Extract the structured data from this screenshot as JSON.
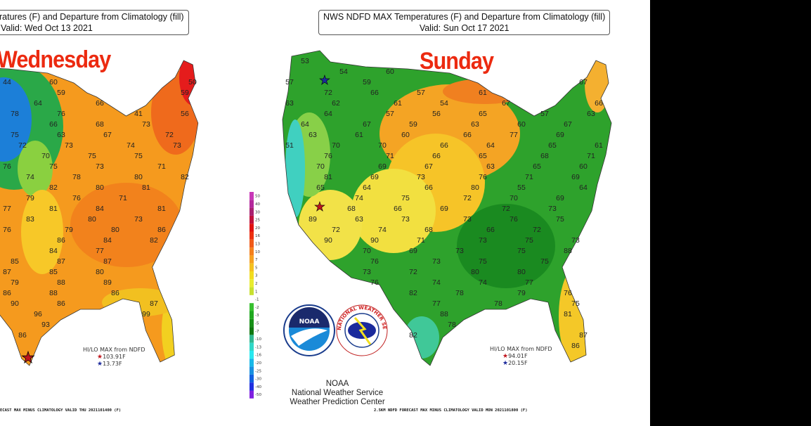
{
  "left_map": {
    "title_line1": "ratures (F) and Departure from Climatology (fill)",
    "title_line2": "Valid: Wed Oct 13 2021",
    "day": "Wednesday",
    "hilo_title": "HI/LO MAX from NDFD",
    "hi": "103.91F",
    "lo": "13.73F",
    "footer": "ECAST MAX MINUS CLIMATOLOGY VALID THU 2021101400 (F)",
    "temps": [
      "44",
      "60",
      "50",
      "59",
      "59",
      "64",
      "66",
      "78",
      "76",
      "41",
      "56",
      "66",
      "68",
      "73",
      "75",
      "63",
      "67",
      "72",
      "72",
      "73",
      "74",
      "73",
      "70",
      "75",
      "75",
      "76",
      "75",
      "73",
      "71",
      "74",
      "78",
      "80",
      "82",
      "82",
      "80",
      "81",
      "79",
      "76",
      "71",
      "77",
      "81",
      "84",
      "81",
      "83",
      "80",
      "73",
      "76",
      "79",
      "80",
      "86",
      "86",
      "84",
      "82",
      "84",
      "77",
      "85",
      "87",
      "87",
      "87",
      "85",
      "80",
      "79",
      "88",
      "89",
      "86",
      "88",
      "86",
      "90",
      "86",
      "87",
      "96",
      "99",
      "93",
      "86"
    ]
  },
  "right_map": {
    "title_line1": "NWS NDFD MAX Temperatures (F) and Departure from Climatology (fill)",
    "title_line2": "Valid: Sun Oct 17 2021",
    "day": "Sunday",
    "hilo_title": "HI/LO MAX from NDFD",
    "hi": "94.01F",
    "lo": "20.15F",
    "footer": "2.5KM NDFD FORECAST MAX MINUS CLIMATOLOGY VALID MON 2021101800 (F)",
    "temps": [
      "53",
      "54",
      "60",
      "57",
      "59",
      "67",
      "72",
      "66",
      "57",
      "61",
      "63",
      "62",
      "61",
      "54",
      "67",
      "66",
      "64",
      "57",
      "56",
      "65",
      "57",
      "63",
      "64",
      "67",
      "59",
      "63",
      "60",
      "67",
      "63",
      "61",
      "60",
      "66",
      "77",
      "69",
      "51",
      "70",
      "70",
      "66",
      "64",
      "65",
      "61",
      "76",
      "71",
      "66",
      "65",
      "68",
      "71",
      "70",
      "69",
      "67",
      "63",
      "65",
      "60",
      "81",
      "69",
      "73",
      "76",
      "71",
      "69",
      "65",
      "64",
      "66",
      "80",
      "55",
      "64",
      "74",
      "75",
      "72",
      "70",
      "69",
      "68",
      "66",
      "69",
      "72",
      "73",
      "89",
      "63",
      "73",
      "73",
      "76",
      "75",
      "72",
      "74",
      "68",
      "66",
      "72",
      "90",
      "90",
      "71",
      "73",
      "75",
      "73",
      "70",
      "69",
      "73",
      "75",
      "88",
      "76",
      "73",
      "75",
      "75",
      "73",
      "72",
      "80",
      "80",
      "76",
      "74",
      "74",
      "77",
      "82",
      "78",
      "79",
      "76",
      "77",
      "78",
      "75",
      "88",
      "81",
      "78",
      "82",
      "87",
      "86"
    ]
  },
  "legend": {
    "ticks": [
      "50",
      "40",
      "30",
      "25",
      "20",
      "16",
      "13",
      "10",
      "7",
      "5",
      "3",
      "2",
      "1",
      "-1",
      "-2",
      "-3",
      "-5",
      "-7",
      "-10",
      "-13",
      "-16",
      "-20",
      "-25",
      "-30",
      "-40",
      "-50"
    ],
    "colors": [
      "#c838b8",
      "#b4289c",
      "#a82070",
      "#c0103c",
      "#e01010",
      "#ec3010",
      "#f05a18",
      "#f4801c",
      "#f6a020",
      "#f4c020",
      "#f2dc20",
      "#e8ec30",
      "#c8e030",
      "#ffffff",
      "#38c030",
      "#20a820",
      "#189018",
      "#107810",
      "#30b890",
      "#30d8c8",
      "#28e8f0",
      "#18b8e8",
      "#1890e0",
      "#1060e0",
      "#2030e0",
      "#8020e0"
    ]
  },
  "logos": {
    "noaa_text": "NOAA",
    "nws_ring_text": "NATIONAL WEATHER SERVICE",
    "line1": "NOAA",
    "line2": "National Weather Service",
    "line3": "Weather Prediction Center"
  },
  "colors": {
    "day_word": "#ec2a10",
    "hi_star": "#c0141c",
    "lo_star": "#1c2a9c"
  }
}
